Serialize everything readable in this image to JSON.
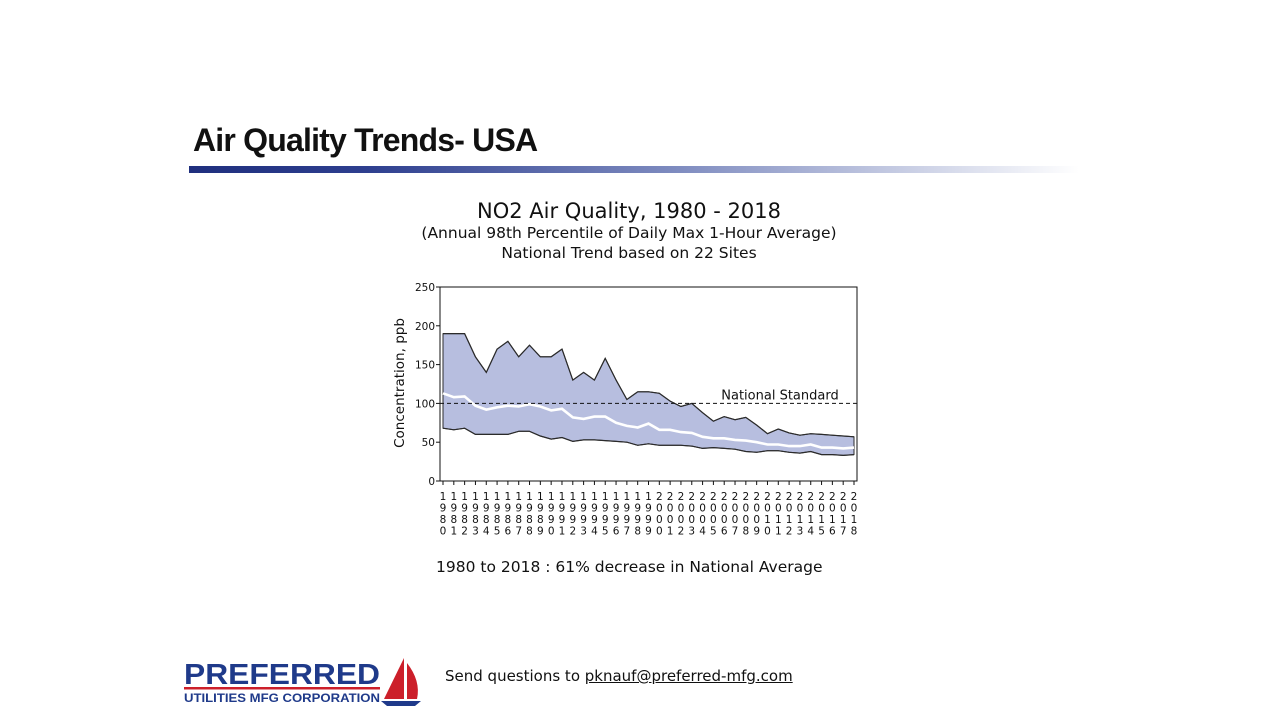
{
  "slide": {
    "title": "Air Quality Trends- USA"
  },
  "footer": {
    "logo_text_main": "PREFERRED",
    "logo_text_sub": "UTILITIES MFG CORPORATION",
    "prompt": "Send questions to ",
    "email": "pknauf@preferred-mfg.com"
  },
  "colors": {
    "title_rule": "#1f2f7e",
    "band_fill": "#b7bedf",
    "band_edge": "#2b2b2b",
    "mean_line": "#ffffff",
    "logo_blue": "#1f3a8a",
    "logo_red": "#cc1f2a"
  },
  "icons": {
    "logo_mark": "sailboat-icon"
  },
  "chart_data": {
    "type": "area",
    "title": "NO2 Air Quality, 1980 - 2018",
    "subtitle": "(Annual 98th Percentile of Daily Max 1-Hour Average)",
    "subtitle2": "National Trend based on 22 Sites",
    "ylabel": "Concentration, ppb",
    "xlabel": "",
    "ylim": [
      0,
      250
    ],
    "yticks": [
      0,
      50,
      100,
      150,
      200,
      250
    ],
    "x": [
      1980,
      1981,
      1982,
      1983,
      1984,
      1985,
      1986,
      1987,
      1988,
      1989,
      1990,
      1991,
      1992,
      1993,
      1994,
      1995,
      1996,
      1997,
      1998,
      1999,
      2000,
      2001,
      2002,
      2003,
      2004,
      2005,
      2006,
      2007,
      2008,
      2009,
      2010,
      2011,
      2012,
      2013,
      2014,
      2015,
      2016,
      2017,
      2018
    ],
    "series": [
      {
        "role": "upper",
        "values": [
          190,
          190,
          190,
          160,
          140,
          170,
          180,
          160,
          175,
          160,
          160,
          170,
          130,
          140,
          130,
          158,
          130,
          105,
          115,
          115,
          113,
          103,
          96,
          100,
          88,
          77,
          83,
          79,
          82,
          72,
          61,
          67,
          62,
          59,
          61,
          60,
          59,
          58,
          57
        ]
      },
      {
        "role": "mean",
        "values": [
          113,
          108,
          109,
          97,
          92,
          95,
          97,
          96,
          99,
          96,
          91,
          93,
          82,
          80,
          83,
          83,
          75,
          71,
          69,
          74,
          66,
          66,
          63,
          62,
          57,
          55,
          55,
          53,
          52,
          50,
          47,
          47,
          45,
          45,
          47,
          43,
          43,
          42,
          43
        ]
      },
      {
        "role": "lower",
        "values": [
          68,
          66,
          68,
          60,
          60,
          60,
          60,
          64,
          64,
          58,
          54,
          56,
          51,
          53,
          53,
          52,
          51,
          50,
          46,
          48,
          46,
          46,
          46,
          45,
          42,
          43,
          42,
          41,
          38,
          37,
          39,
          39,
          37,
          36,
          38,
          34,
          34,
          33,
          34
        ]
      }
    ],
    "reference_line": {
      "value": 100,
      "label": "National Standard",
      "style": "dashed"
    },
    "annotation": "1980 to 2018 :  61% decrease in National Average",
    "grid": false,
    "legend": "none"
  }
}
